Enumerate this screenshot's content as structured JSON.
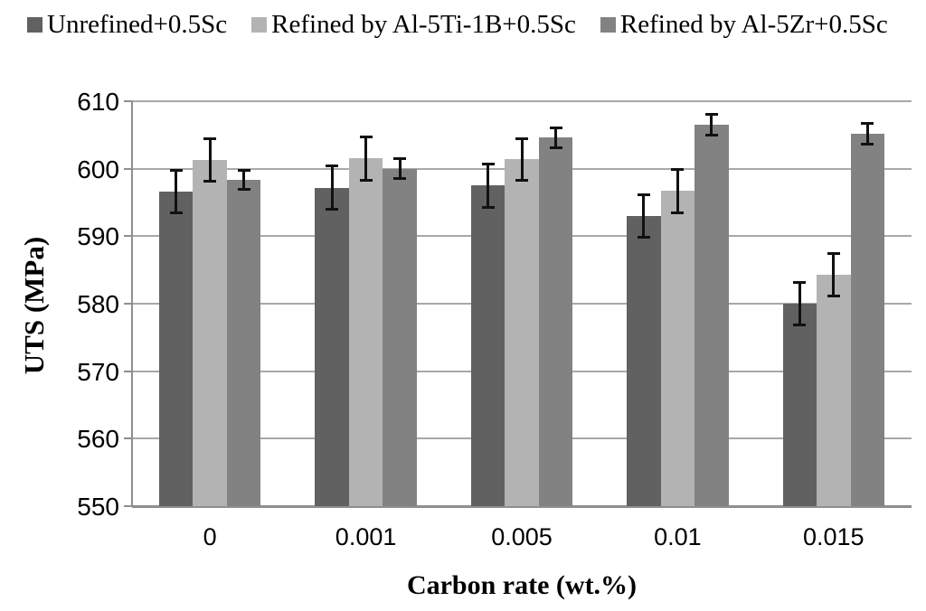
{
  "chart_data": {
    "type": "bar",
    "title": "",
    "xlabel": "Carbon rate (wt.%)",
    "ylabel": "UTS (MPa)",
    "categories": [
      "0",
      "0.001",
      "0.005",
      "0.01",
      "0.015"
    ],
    "ylim": [
      550,
      610
    ],
    "yticks": [
      550,
      560,
      570,
      580,
      590,
      600,
      610
    ],
    "grid": true,
    "legend_position": "top",
    "series": [
      {
        "name": "Unrefined+0.5Sc",
        "color": "#616161",
        "values": [
          596.6,
          597.2,
          597.5,
          593.0,
          580.0
        ],
        "errors": [
          3.4,
          3.4,
          3.4,
          3.4,
          3.4
        ]
      },
      {
        "name": "Refined by Al-5Ti-1B+0.5Sc",
        "color": "#b3b3b3",
        "values": [
          601.3,
          601.5,
          601.4,
          596.7,
          584.3
        ],
        "errors": [
          3.3,
          3.4,
          3.3,
          3.4,
          3.4
        ]
      },
      {
        "name": "Refined by Al-5Zr+0.5Sc",
        "color": "#828282",
        "values": [
          598.4,
          600.0,
          604.6,
          606.5,
          605.2
        ],
        "errors": [
          1.6,
          1.7,
          1.7,
          1.7,
          1.7
        ]
      }
    ],
    "colors": {
      "gridline": "#a8a8a8",
      "axis": "#8f8f8f",
      "error_bar": "#111111",
      "background": "#ffffff",
      "text": "#000000"
    }
  }
}
